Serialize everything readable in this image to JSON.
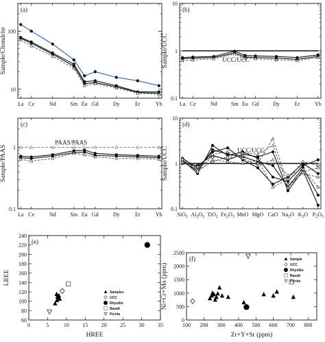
{
  "chart_data": [
    {
      "id": "a",
      "type": "line",
      "panel_label": "(a)",
      "ylabel": "Sample/Chondrite",
      "yscale": "log",
      "categories": [
        "La",
        "Ce",
        "Nd",
        "Sm",
        "Eu",
        "Gd",
        "Dy",
        "Er",
        "Yb"
      ],
      "xpos": [
        0,
        1,
        3,
        5,
        6,
        7,
        9,
        11,
        13
      ],
      "yticks": [
        {
          "v": 10,
          "t": "10"
        },
        {
          "v": 100,
          "t": "100"
        }
      ],
      "ylim": [
        7,
        300
      ],
      "series": [
        {
          "style": "blue",
          "values": [
            130,
            100,
            60,
            32,
            17,
            20,
            16,
            14,
            11.5
          ]
        },
        {
          "style": "black",
          "values": [
            78,
            65,
            42,
            27,
            13.5,
            14,
            11.5,
            9,
            9
          ]
        },
        {
          "style": "black",
          "values": [
            75,
            62,
            40,
            25,
            12.5,
            13,
            11,
            8.8,
            8.5
          ]
        },
        {
          "style": "dashed",
          "values": [
            70,
            56,
            37,
            23,
            11.5,
            12.5,
            10.5,
            8.5,
            8.2
          ]
        }
      ]
    },
    {
      "id": "b",
      "type": "line",
      "panel_label": "(b)",
      "ylabel": "Sample/UCC",
      "yscale": "log",
      "categories": [
        "La",
        "Ce",
        "Nd",
        "Sm",
        "Eu",
        "Gd",
        "Dy",
        "Er",
        "Yb"
      ],
      "xpos": [
        0,
        1,
        3,
        5,
        6,
        7,
        9,
        11,
        13
      ],
      "yticks": [
        {
          "v": 0.1,
          "t": "0.1"
        },
        {
          "v": 1,
          "t": "1"
        },
        {
          "v": 10,
          "t": "10"
        }
      ],
      "ylim": [
        0.1,
        10
      ],
      "annotation": "UCC/UCC",
      "series": [
        {
          "style": "ref",
          "values": [
            1,
            1,
            1,
            1,
            1,
            1,
            1,
            1,
            1
          ]
        },
        {
          "style": "black",
          "values": [
            0.72,
            0.74,
            0.76,
            0.98,
            0.8,
            0.78,
            0.76,
            0.72,
            0.82
          ]
        },
        {
          "style": "black",
          "values": [
            0.68,
            0.7,
            0.72,
            0.9,
            0.74,
            0.72,
            0.7,
            0.66,
            0.76
          ]
        },
        {
          "style": "dashed",
          "values": [
            0.62,
            0.64,
            0.68,
            0.86,
            0.7,
            0.68,
            0.64,
            0.62,
            0.72
          ]
        }
      ]
    },
    {
      "id": "c",
      "type": "line",
      "panel_label": "(c)",
      "ylabel": "Sample/PAAS",
      "yscale": "log",
      "categories": [
        "La",
        "Ce",
        "Nd",
        "Sm",
        "Eu",
        "Gd",
        "Dy",
        "Er",
        "Yb"
      ],
      "xpos": [
        0,
        1,
        3,
        5,
        6,
        7,
        9,
        11,
        13
      ],
      "yticks": [
        {
          "v": 0.1,
          "t": "0.1"
        },
        {
          "v": 1,
          "t": "1"
        }
      ],
      "ylim": [
        0.1,
        3
      ],
      "annotation": "PAAS/PAAS",
      "series": [
        {
          "style": "ref",
          "values": [
            1,
            1,
            1,
            1,
            1,
            1,
            1,
            1,
            1
          ]
        },
        {
          "style": "black",
          "values": [
            0.72,
            0.7,
            0.76,
            0.88,
            0.9,
            0.8,
            0.76,
            0.74,
            0.72
          ]
        },
        {
          "style": "black",
          "values": [
            0.68,
            0.66,
            0.72,
            0.82,
            0.84,
            0.74,
            0.72,
            0.7,
            0.68
          ]
        },
        {
          "style": "dashed",
          "values": [
            0.64,
            0.6,
            0.66,
            0.8,
            0.76,
            0.7,
            0.66,
            0.66,
            0.64
          ]
        }
      ]
    },
    {
      "id": "d",
      "type": "line",
      "panel_label": "(d)",
      "ylabel": "Sample/UCC",
      "yscale": "log",
      "categories": [
        "SiO2",
        "Al2O3",
        "TiO2",
        "Fe2O3",
        "MnO",
        "MgO",
        "CaO",
        "Na2O",
        "K2O",
        "P2O5"
      ],
      "category_html": [
        [
          "SiO",
          [
            "2"
          ]
        ],
        [
          "Al",
          [
            "2"
          ],
          "O",
          [
            "3"
          ]
        ],
        [
          "TiO",
          [
            "2"
          ]
        ],
        [
          "Fe",
          [
            "2"
          ],
          "O",
          [
            "3"
          ]
        ],
        [
          "MnO"
        ],
        [
          "MgO"
        ],
        [
          "CaO"
        ],
        [
          "Na",
          [
            "2"
          ],
          "O"
        ],
        [
          "K",
          [
            "2"
          ],
          "O"
        ],
        [
          "P",
          [
            "2"
          ],
          "O",
          [
            "5"
          ]
        ]
      ],
      "xpos": [
        0,
        1,
        2,
        3,
        4,
        5,
        6,
        7,
        8,
        9
      ],
      "yticks": [
        {
          "v": 0.1,
          "t": "0.1"
        },
        {
          "v": 1,
          "t": "1"
        },
        {
          "v": 10,
          "t": "10"
        }
      ],
      "ylim": [
        0.1,
        10
      ],
      "annotation": "UCC/UCC",
      "series": [
        {
          "style": "ref",
          "values": [
            1,
            1,
            1,
            1,
            1,
            1,
            1,
            1,
            1,
            1
          ]
        },
        {
          "style": "black",
          "values": [
            1.2,
            0.6,
            2.5,
            1.5,
            1.8,
            1.3,
            0.5,
            0.4,
            0.9,
            1.2
          ]
        },
        {
          "style": "black",
          "values": [
            1.1,
            0.7,
            2.0,
            1.6,
            1.4,
            1.1,
            0.9,
            0.3,
            0.8,
            0.2
          ]
        },
        {
          "style": "black",
          "values": [
            1.3,
            0.8,
            1.8,
            2.2,
            1.2,
            0.8,
            0.35,
            0.5,
            1.0,
            0.6
          ]
        },
        {
          "style": "black",
          "values": [
            1.0,
            0.9,
            1.5,
            1.2,
            1.6,
            1.4,
            1.8,
            0.25,
            0.7,
            0.12
          ]
        },
        {
          "style": "dashed",
          "values": [
            1.2,
            0.75,
            1.4,
            1.3,
            1.5,
            1.0,
            3.5,
            0.35,
            0.6,
            0.5
          ]
        },
        {
          "style": "dashed",
          "values": [
            1.15,
            0.65,
            1.2,
            1.1,
            1.0,
            1.2,
            0.3,
            0.45,
            1.1,
            0.9
          ]
        },
        {
          "style": "dashed",
          "values": [
            1.05,
            0.85,
            1.6,
            1.8,
            1.3,
            0.9,
            1.2,
            0.55,
            0.75,
            0.3
          ]
        },
        {
          "style": "dashed",
          "values": [
            1.25,
            0.7,
            1.1,
            1.4,
            1.7,
            1.6,
            2.5,
            0.3,
            0.65,
            0.8
          ]
        }
      ]
    },
    {
      "id": "e",
      "type": "scatter",
      "panel_label": "(e)",
      "xlabel": "HREE",
      "ylabel": "LREE",
      "xlim": [
        0,
        35
      ],
      "ylim": [
        60,
        240
      ],
      "xticks": [
        0,
        5,
        10,
        15,
        20,
        25,
        30,
        35
      ],
      "yticks": [
        60,
        80,
        100,
        120,
        140,
        160,
        180,
        200,
        220,
        240
      ],
      "legend": [
        "Samples",
        "UCC",
        "Rhyolite",
        "Basalt",
        "Picrite"
      ],
      "series": [
        {
          "name": "Samples",
          "marker": "triangle",
          "points": [
            [
              7,
              95
            ],
            [
              7.5,
              102
            ],
            [
              7.8,
              108
            ],
            [
              8,
              112
            ],
            [
              7.4,
              115
            ],
            [
              8.2,
              105
            ],
            [
              7.6,
              110
            ]
          ]
        },
        {
          "name": "UCC",
          "marker": "diamond",
          "points": [
            [
              8.9,
              122
            ]
          ]
        },
        {
          "name": "Rhyolite",
          "marker": "circle",
          "points": [
            [
              31.5,
              220
            ]
          ]
        },
        {
          "name": "Basalt",
          "marker": "square",
          "points": [
            [
              10.5,
              137
            ]
          ]
        },
        {
          "name": "Picrite",
          "marker": "triangle-down",
          "points": [
            [
              5.5,
              78
            ]
          ]
        }
      ]
    },
    {
      "id": "f",
      "type": "scatter",
      "panel_label": "(f)",
      "xlabel": "Zr+Y+Sr (ppm)",
      "ylabel": "Ni+Cr+Mn (ppm)",
      "xlim": [
        100,
        850
      ],
      "ylim": [
        0,
        2500
      ],
      "xticks": [
        100,
        200,
        300,
        400,
        500,
        600,
        700,
        800
      ],
      "yticks": [
        0,
        500,
        1000,
        1500,
        2000,
        2500
      ],
      "legend": [
        "Sample",
        "UCC",
        "Rhyolite",
        "Basalt",
        "Picrite"
      ],
      "series": [
        {
          "name": "Sample",
          "marker": "triangle",
          "points": [
            [
              235,
              800
            ],
            [
              245,
              900
            ],
            [
              250,
              1000
            ],
            [
              258,
              950
            ],
            [
              265,
              750
            ],
            [
              272,
              850
            ],
            [
              280,
              980
            ],
            [
              290,
              1200
            ],
            [
              305,
              900
            ],
            [
              340,
              850
            ],
            [
              430,
              650
            ],
            [
              545,
              950
            ],
            [
              600,
              900
            ],
            [
              620,
              1050
            ],
            [
              715,
              850
            ]
          ]
        },
        {
          "name": "UCC",
          "marker": "diamond",
          "points": [
            [
              135,
              700
            ]
          ]
        },
        {
          "name": "Rhyolite",
          "marker": "circle",
          "points": [
            [
              445,
              480
            ]
          ]
        },
        {
          "name": "Basalt",
          "marker": "square",
          "points": [
            [
              705,
              1420
            ]
          ]
        },
        {
          "name": "Picrite",
          "marker": "triangle-down",
          "points": [
            [
              455,
              2380
            ]
          ]
        }
      ]
    }
  ]
}
